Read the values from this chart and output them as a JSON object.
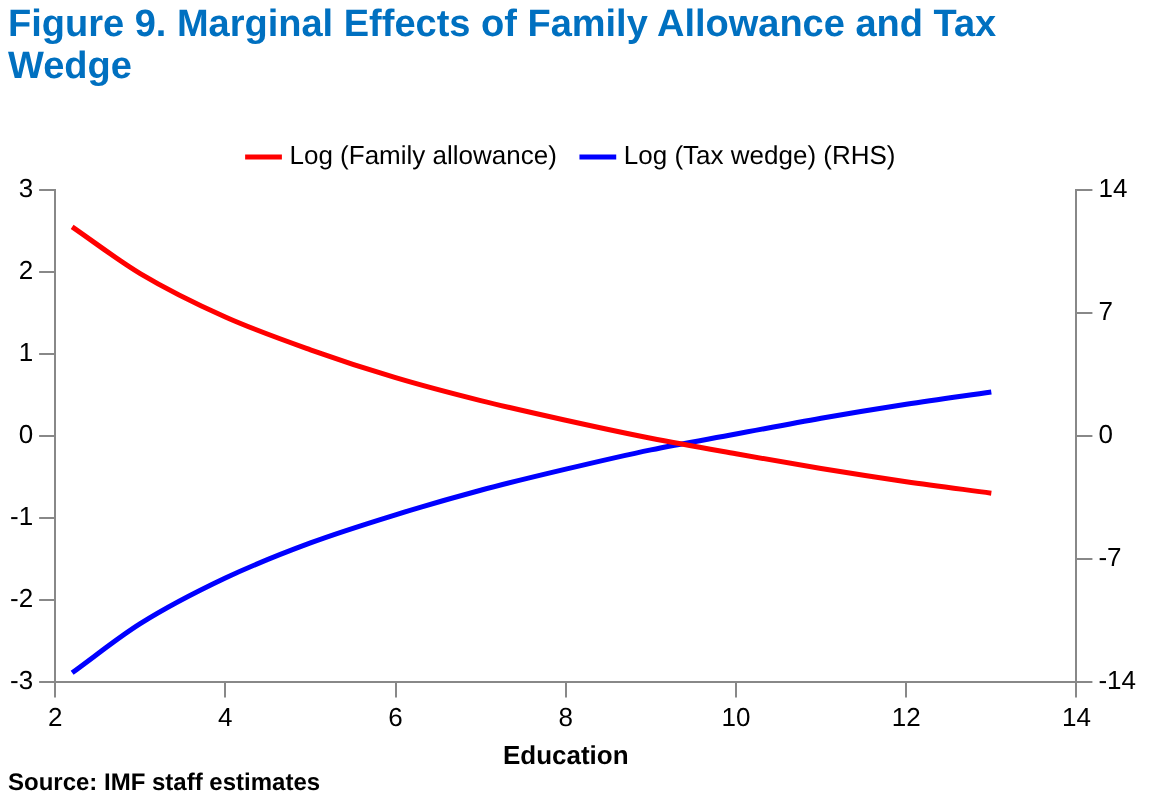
{
  "chart_data": {
    "type": "line",
    "title": "Figure 9. Marginal Effects of Family Allowance and Tax Wedge",
    "xlabel": "Education",
    "x": [
      2.2,
      3,
      4,
      5,
      6,
      7,
      8,
      9,
      10,
      11,
      12,
      13
    ],
    "series": [
      {
        "name": "Log (Family allowance)",
        "color": "#ff0000",
        "values": [
          2.55,
          1.98,
          1.45,
          1.05,
          0.71,
          0.43,
          0.19,
          -0.03,
          -0.22,
          -0.4,
          -0.56,
          -0.7
        ]
      },
      {
        "name": "Log (Tax wedge) (RHS)",
        "color": "#0000ff",
        "axis": "y2",
        "values": [
          -13.5,
          -10.7,
          -8.1,
          -6.1,
          -4.5,
          -3.1,
          -1.9,
          -0.8,
          0.1,
          1.0,
          1.8,
          2.5
        ]
      }
    ],
    "xlim": [
      2,
      14
    ],
    "xticks": [
      2,
      4,
      6,
      8,
      10,
      12,
      14
    ],
    "ylim": [
      -3,
      3
    ],
    "yticks": [
      -3,
      -2,
      -1,
      0,
      1,
      2,
      3
    ],
    "y2lim": [
      -14,
      14
    ],
    "y2ticks": [
      -14,
      -7,
      0,
      7,
      14
    ],
    "legend": "top",
    "grid": false,
    "marker": "none",
    "line_style": "solid",
    "annotations": [
      "Source: IMF staff estimates"
    ]
  }
}
